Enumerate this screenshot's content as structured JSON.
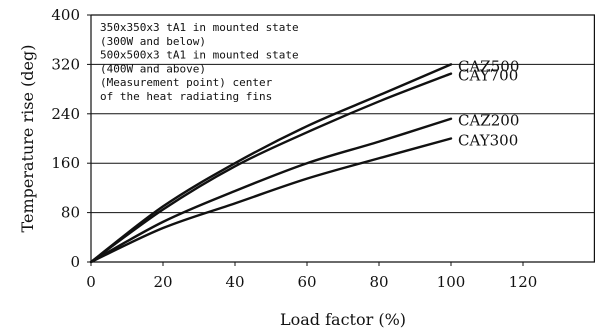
{
  "chart_data": {
    "type": "line",
    "title": "",
    "xlabel": "Load factor (%)",
    "ylabel": "Temperature rise (deg)",
    "xlim": [
      0,
      140
    ],
    "ylim": [
      0,
      400
    ],
    "x_ticks": [
      0,
      20,
      40,
      60,
      80,
      100,
      120
    ],
    "y_ticks": [
      0,
      80,
      160,
      240,
      320,
      400
    ],
    "grid": "horizontal",
    "annotation_lines": [
      "350x350x3 tA1 in mounted state",
      "(300W and below)",
      "500x500x3 tA1 in mounted state",
      "(400W and above)",
      "(Measurement point) center",
      "of the heat radiating fins"
    ],
    "series": [
      {
        "name": "CAZ500",
        "x": [
          0,
          20,
          40,
          60,
          80,
          100
        ],
        "y": [
          0,
          90,
          160,
          220,
          270,
          320
        ]
      },
      {
        "name": "CAY700",
        "x": [
          0,
          20,
          40,
          60,
          80,
          100
        ],
        "y": [
          0,
          85,
          155,
          210,
          260,
          305
        ]
      },
      {
        "name": "CAZ200",
        "x": [
          0,
          20,
          40,
          60,
          80,
          100
        ],
        "y": [
          0,
          65,
          115,
          160,
          195,
          232
        ]
      },
      {
        "name": "CAY300",
        "x": [
          0,
          20,
          40,
          60,
          80,
          100
        ],
        "y": [
          0,
          55,
          95,
          135,
          168,
          200
        ]
      }
    ]
  }
}
